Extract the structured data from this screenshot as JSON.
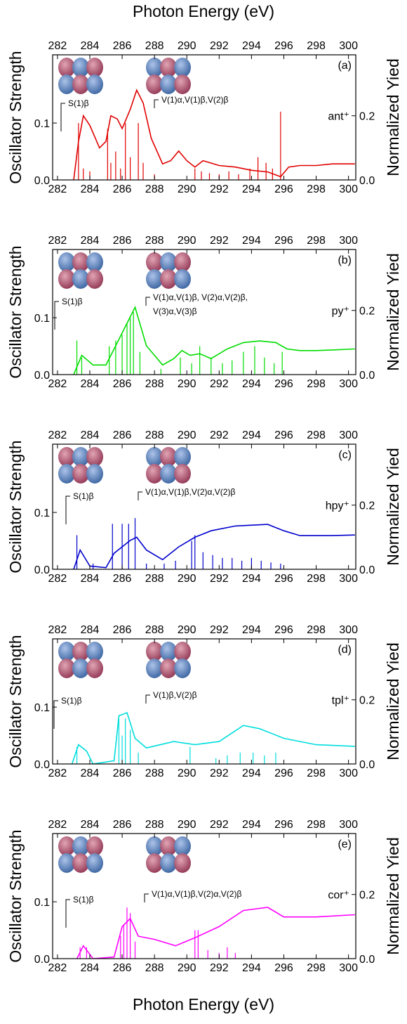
{
  "chart_data": [
    {
      "type": "spectrum",
      "x2label": "Photon Energy (eV)",
      "ylabel": "Oscillator Strength",
      "y2label": "Normalized Yied",
      "panel_label": "(a)",
      "molecule": "ant⁺",
      "annotations": [
        "S(1)β",
        "V(1)α,V(1)β,V(2)β"
      ],
      "xlim": [
        281.7,
        300.45
      ],
      "xticks": [
        282,
        284,
        286,
        288,
        290,
        292,
        294,
        296,
        298,
        300
      ],
      "ylim": [
        0,
        0.22
      ],
      "yticks": [
        {
          "value": 0,
          "label": "0.0"
        },
        0.1
      ],
      "y2lim": [
        0,
        0.39
      ],
      "y2ticks": [
        {
          "value": 0,
          "label": "0.0"
        },
        0.2
      ],
      "sticks": {
        "color": "#e00000",
        "x": [
          283.3,
          283.6,
          284.0,
          285.1,
          285.3,
          285.6,
          285.9,
          286.2,
          286.5,
          287.0,
          287.3,
          288.0,
          290.5,
          290.9,
          291.4,
          292.0,
          292.6,
          293.2,
          293.9,
          294.4,
          294.9,
          295.3,
          295.8
        ],
        "values": [
          0.1,
          0.02,
          0.015,
          0.09,
          0.03,
          0.05,
          0.02,
          0.1,
          0.04,
          0.1,
          0.03,
          0.01,
          0.02,
          0.015,
          0.012,
          0.01,
          0.015,
          0.01,
          0.02,
          0.04,
          0.03,
          0.02,
          0.12
        ]
      },
      "yield": {
        "color": "#e00000",
        "axis": "y2",
        "x": [
          283.0,
          283.3,
          283.6,
          284.0,
          284.6,
          285.0,
          285.3,
          285.7,
          286.0,
          286.5,
          286.9,
          287.3,
          287.8,
          288.5,
          289.0,
          289.5,
          290.0,
          290.5,
          291.0,
          292.0,
          293.0,
          294.0,
          295.0,
          295.8,
          296.3,
          297.0,
          298.0,
          299.0,
          300.4
        ],
        "values": [
          0.0,
          0.12,
          0.2,
          0.17,
          0.1,
          0.12,
          0.2,
          0.19,
          0.16,
          0.22,
          0.28,
          0.24,
          0.13,
          0.05,
          0.06,
          0.09,
          0.06,
          0.04,
          0.06,
          0.045,
          0.04,
          0.03,
          0.025,
          0.01,
          0.04,
          0.045,
          0.045,
          0.05,
          0.05
        ]
      }
    },
    {
      "type": "spectrum",
      "ylabel": "Oscillator Strength",
      "y2label": "Normalized Yied",
      "panel_label": "(b)",
      "molecule": "py⁺",
      "annotations": [
        "S(1)β",
        "V(1)α,V(1)β, V(2)α,V(2)β,",
        "V(3)α,V(3)β"
      ],
      "xlim": [
        281.7,
        300.45
      ],
      "xticks": [
        282,
        284,
        286,
        288,
        290,
        292,
        294,
        296,
        298,
        300
      ],
      "ylim": [
        0,
        0.22
      ],
      "yticks": [
        {
          "value": 0,
          "label": "0.0"
        },
        0.1
      ],
      "y2lim": [
        0,
        0.39
      ],
      "y2ticks": [
        {
          "value": 0,
          "label": "0.0"
        },
        0.2
      ],
      "sticks": {
        "color": "#00dd00",
        "x": [
          283.2,
          283.5,
          285.2,
          285.6,
          286.0,
          286.3,
          286.5,
          286.7,
          287.1,
          288.4,
          289.6,
          290.3,
          290.8,
          291.5,
          292.2,
          292.8,
          293.5,
          294.2,
          294.8,
          295.4,
          295.9
        ],
        "values": [
          0.06,
          0.03,
          0.05,
          0.06,
          0.07,
          0.09,
          0.1,
          0.11,
          0.04,
          0.01,
          0.03,
          0.02,
          0.05,
          0.03,
          0.02,
          0.025,
          0.04,
          0.05,
          0.03,
          0.02,
          0.04
        ]
      },
      "yield": {
        "color": "#00dd00",
        "axis": "y2",
        "x": [
          283.0,
          283.5,
          284.2,
          285.0,
          285.5,
          286.2,
          286.8,
          287.5,
          288.5,
          289.2,
          289.7,
          290.2,
          290.8,
          291.5,
          292.5,
          293.5,
          294.5,
          295.5,
          296.2,
          297.0,
          298.0,
          299.0,
          300.4
        ],
        "values": [
          0.0,
          0.06,
          0.03,
          0.03,
          0.08,
          0.15,
          0.21,
          0.09,
          0.03,
          0.05,
          0.075,
          0.06,
          0.065,
          0.05,
          0.08,
          0.1,
          0.105,
          0.1,
          0.08,
          0.075,
          0.075,
          0.077,
          0.08
        ]
      }
    },
    {
      "type": "spectrum",
      "ylabel": "Oscillator Strength",
      "y2label": "Normalized Yied",
      "panel_label": "(c)",
      "molecule": "hpy⁺",
      "annotations": [
        "S(1)β",
        "V(1)α,V(1)β,V(2)α,V(2)β"
      ],
      "xlim": [
        281.7,
        300.45
      ],
      "xticks": [
        282,
        284,
        286,
        288,
        290,
        292,
        294,
        296,
        298,
        300
      ],
      "ylim": [
        0,
        0.22
      ],
      "yticks": [
        {
          "value": 0,
          "label": "0.0"
        },
        0.1
      ],
      "y2lim": [
        0,
        0.39
      ],
      "y2ticks": [
        {
          "value": 0,
          "label": "0.0"
        },
        0.2
      ],
      "sticks": {
        "color": "#0000cc",
        "x": [
          283.2,
          284.2,
          285.4,
          286.0,
          286.4,
          286.8,
          287.5,
          288.6,
          289.3,
          290.3,
          290.5,
          291.0,
          291.6,
          292.2,
          292.8,
          293.4,
          294.0,
          294.6,
          295.2,
          295.8
        ],
        "values": [
          0.06,
          0.01,
          0.08,
          0.08,
          0.08,
          0.09,
          0.01,
          0.01,
          0.015,
          0.05,
          0.06,
          0.03,
          0.025,
          0.02,
          0.02,
          0.015,
          0.02,
          0.015,
          0.012,
          0.01
        ]
      },
      "yield": {
        "color": "#0000cc",
        "axis": "y2",
        "x": [
          283.0,
          283.4,
          284.0,
          285.0,
          285.5,
          286.5,
          286.9,
          287.5,
          288.5,
          289.5,
          290.5,
          291.5,
          293.0,
          295.0,
          296.0,
          297.0,
          299.0,
          300.4
        ],
        "values": [
          0.0,
          0.06,
          0.01,
          0.005,
          0.05,
          0.09,
          0.1,
          0.06,
          0.03,
          0.07,
          0.1,
          0.12,
          0.135,
          0.14,
          0.12,
          0.105,
          0.105,
          0.107
        ]
      }
    },
    {
      "type": "spectrum",
      "ylabel": "Oscillator Strength",
      "y2label": "Normalized Yied",
      "panel_label": "(d)",
      "molecule": "tpl⁺",
      "annotations": [
        "S(1)β",
        "V(1)β,V(2)β"
      ],
      "xlim": [
        281.7,
        300.45
      ],
      "xticks": [
        282,
        284,
        286,
        288,
        290,
        292,
        294,
        296,
        298,
        300
      ],
      "ylim": [
        0,
        0.22
      ],
      "yticks": [
        {
          "value": 0,
          "label": "0.0"
        },
        0.1
      ],
      "y2lim": [
        0,
        0.39
      ],
      "y2ticks": [
        {
          "value": 0,
          "label": "0.0"
        },
        0.2
      ],
      "sticks": {
        "color": "#00dddd",
        "x": [
          283.2,
          285.8,
          286.0,
          286.2,
          286.5,
          287.0,
          290.2,
          291.8,
          292.5,
          293.3,
          294.1,
          294.8,
          295.5
        ],
        "values": [
          0.03,
          0.08,
          0.05,
          0.08,
          0.06,
          0.02,
          0.03,
          0.01,
          0.015,
          0.02,
          0.02,
          0.015,
          0.02
        ]
      },
      "yield": {
        "color": "#00dddd",
        "axis": "y2",
        "x": [
          282.9,
          283.3,
          283.8,
          284.2,
          285.5,
          285.8,
          286.3,
          286.8,
          287.5,
          289.2,
          290.5,
          292.0,
          293.5,
          294.5,
          296.0,
          298.0,
          300.4
        ],
        "values": [
          0.0,
          0.06,
          0.04,
          0.0,
          0.01,
          0.15,
          0.16,
          0.08,
          0.05,
          0.07,
          0.06,
          0.07,
          0.12,
          0.11,
          0.08,
          0.06,
          0.055
        ]
      }
    },
    {
      "type": "spectrum",
      "xlabel": "Photon Energy (eV)",
      "ylabel": "Oscillator Strength",
      "y2label": "Normalized Yied",
      "panel_label": "(e)",
      "molecule": "cor⁺",
      "annotations": [
        "S(1)β",
        "V(1)α,V(1)β,V(2)α,V(2)β"
      ],
      "xlim": [
        281.7,
        300.45
      ],
      "xticks": [
        282,
        284,
        286,
        288,
        290,
        292,
        294,
        296,
        298,
        300
      ],
      "ylim": [
        0,
        0.22
      ],
      "yticks": [
        {
          "value": 0,
          "label": "0.0"
        },
        0.1
      ],
      "y2lim": [
        0,
        0.39
      ],
      "y2ticks": [
        {
          "value": 0,
          "label": "0.0"
        },
        0.2
      ],
      "sticks": {
        "color": "#ff00ff",
        "x": [
          283.4,
          283.8,
          285.9,
          286.1,
          286.3,
          286.5,
          286.8,
          290.5,
          290.7,
          291.3,
          292.0,
          292.5,
          293.0
        ],
        "values": [
          0.02,
          0.02,
          0.04,
          0.06,
          0.09,
          0.08,
          0.03,
          0.05,
          0.05,
          0.015,
          0.01,
          0.02,
          0.01
        ]
      },
      "yield": {
        "color": "#ff00ff",
        "axis": "y2",
        "x": [
          283.2,
          283.6,
          284.2,
          285.5,
          286.0,
          286.5,
          287.0,
          288.0,
          289.3,
          290.5,
          292.0,
          293.5,
          295.0,
          296.0,
          298.0,
          300.4
        ],
        "values": [
          0.0,
          0.04,
          0.0,
          0.005,
          0.1,
          0.125,
          0.07,
          0.06,
          0.04,
          0.065,
          0.1,
          0.15,
          0.16,
          0.13,
          0.13,
          0.137
        ]
      }
    }
  ]
}
